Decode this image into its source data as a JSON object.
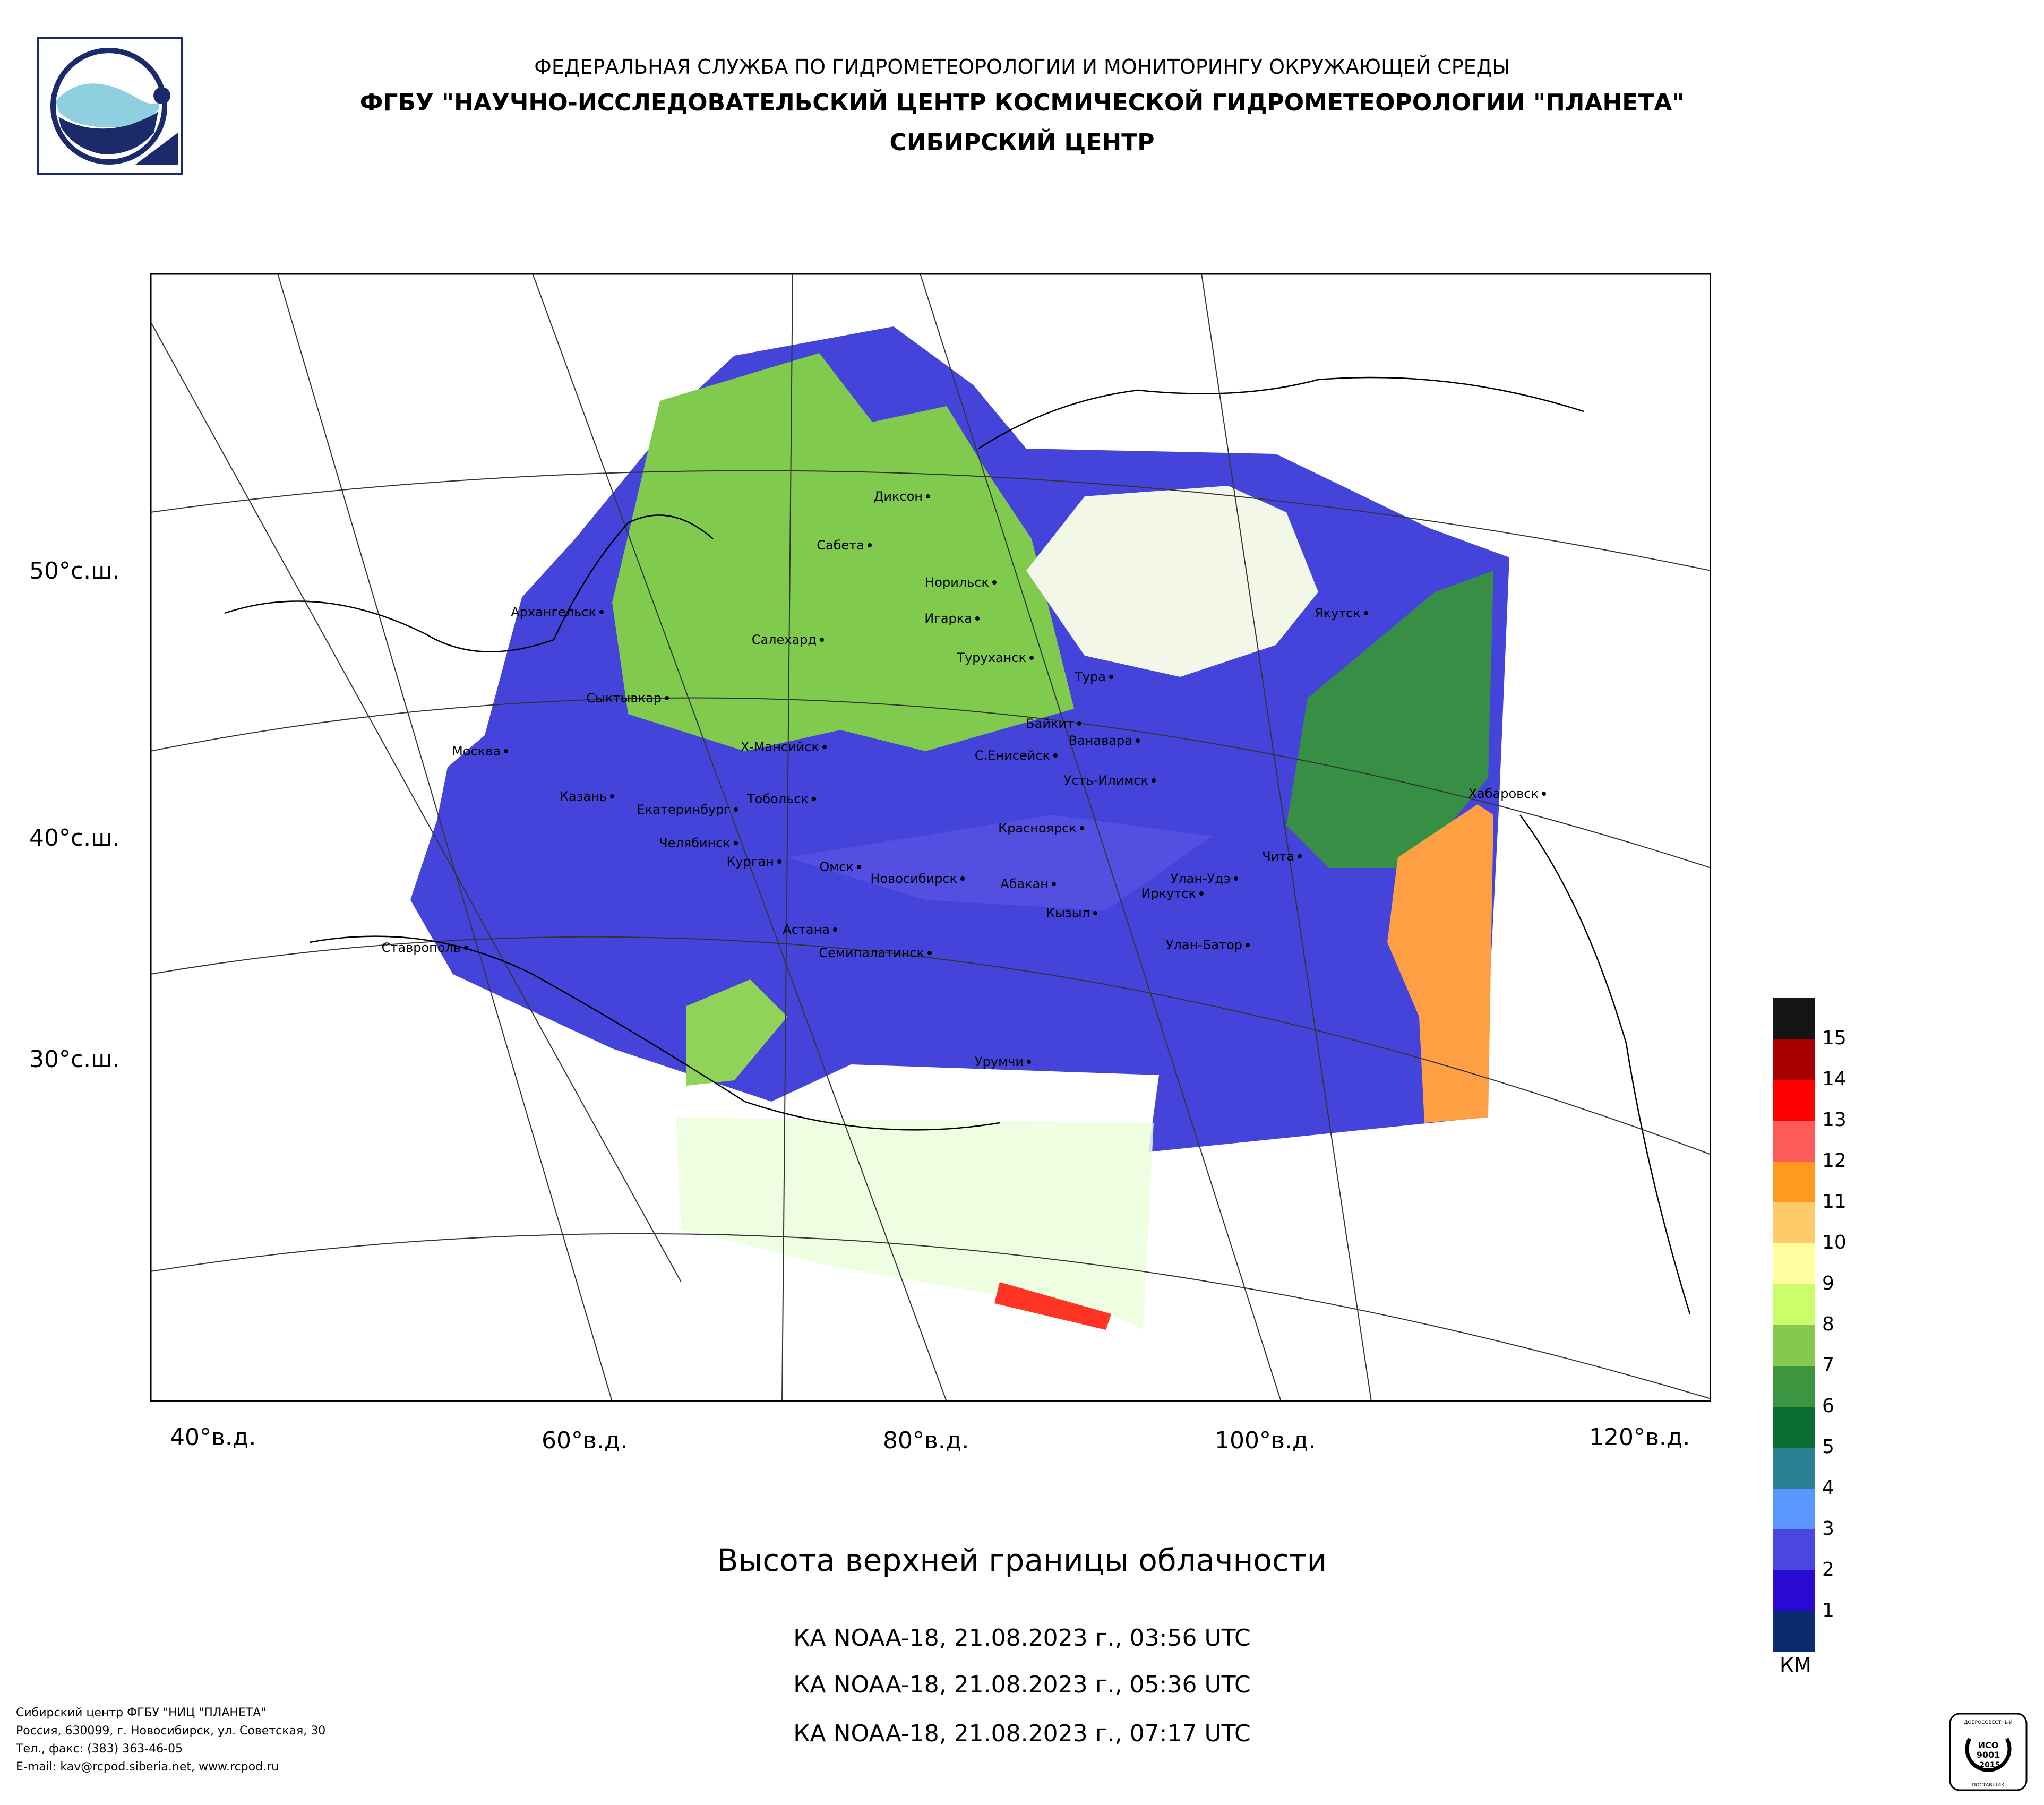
{
  "header": {
    "line1": "ФЕДЕРАЛЬНАЯ СЛУЖБА ПО ГИДРОМЕТЕОРОЛОГИИ И МОНИТОРИНГУ ОКРУЖАЮЩЕЙ СРЕДЫ",
    "line2": "ФГБУ \"НАУЧНО-ИССЛЕДОВАТЕЛЬСКИЙ ЦЕНТР КОСМИЧЕСКОЙ ГИДРОМЕТЕОРОЛОГИИ \"ПЛАНЕТА\"",
    "line3": "СИБИРСКИЙ ЦЕНТР"
  },
  "map": {
    "lat_labels": [
      "50°с.ш.",
      "40°с.ш.",
      "30°с.ш."
    ],
    "lon_labels": [
      "40°в.д.",
      "60°в.д.",
      "80°в.д.",
      "100°в.д.",
      "120°в.д."
    ],
    "cities": [
      "Диксон",
      "Сабета",
      "Норильск",
      "Игарка",
      "Салехард",
      "Туруханск",
      "Тура",
      "Якутск",
      "Архангельск",
      "Сыктывкар",
      "Байкит",
      "Ванавара",
      "Москва",
      "Х-Мансийск",
      "С.Енисейск",
      "Усть-Илимск",
      "Хабаровск",
      "Казань",
      "Екатеринбург",
      "Тобольск",
      "Красноярск",
      "Чита",
      "Челябинск",
      "Курган",
      "Омск",
      "Новосибирск",
      "Абакан",
      "Улан-Удэ",
      "Иркутск",
      "Кызыл",
      "Ставрополь",
      "Астана",
      "Семипалатинск",
      "Улан-Батор",
      "Урумчи"
    ]
  },
  "legend": {
    "unit": "КМ",
    "items": [
      {
        "label": "15",
        "color": "#151515"
      },
      {
        "label": "14",
        "color": "#a80000"
      },
      {
        "label": "13",
        "color": "#ff0000"
      },
      {
        "label": "12",
        "color": "#ff5a5a"
      },
      {
        "label": "11",
        "color": "#ff9a1e"
      },
      {
        "label": "10",
        "color": "#ffca6a"
      },
      {
        "label": "9",
        "color": "#ffffa0"
      },
      {
        "label": "8",
        "color": "#caff6a"
      },
      {
        "label": "7",
        "color": "#86c850"
      },
      {
        "label": "6",
        "color": "#3c9640"
      },
      {
        "label": "5",
        "color": "#0a6e32"
      },
      {
        "label": "4",
        "color": "#2a7f92"
      },
      {
        "label": "3",
        "color": "#5a96ff"
      },
      {
        "label": "2",
        "color": "#4a46e0"
      },
      {
        "label": "1",
        "color": "#2a0ad2"
      },
      {
        "label": "",
        "color": "#0a2c6e"
      }
    ]
  },
  "subtitle": "Высота верхней границы облачности",
  "passes": [
    "КА NOAA-18, 21.08.2023 г., 03:56 UTC",
    "КА NOAA-18, 21.08.2023 г., 05:36 UTC",
    "КА NOAA-18, 21.08.2023 г., 07:17 UTC"
  ],
  "footer": {
    "line1": "Сибирский центр ФГБУ \"НИЦ \"ПЛАНЕТА\"",
    "line2": "Россия, 630099, г. Новосибирск, ул. Советская, 30",
    "line3": "Тел., факс: (383) 363-46-05",
    "line4": "E-mail: kav@rcpod.siberia.net, www.rcpod.ru"
  },
  "iso": {
    "top": "ДОБРОСОВЕСТНЫЙ",
    "line1": "ИСО",
    "line2": "9001",
    "line3": "-2015",
    "bottom": "ПОСТАВЩИК"
  }
}
